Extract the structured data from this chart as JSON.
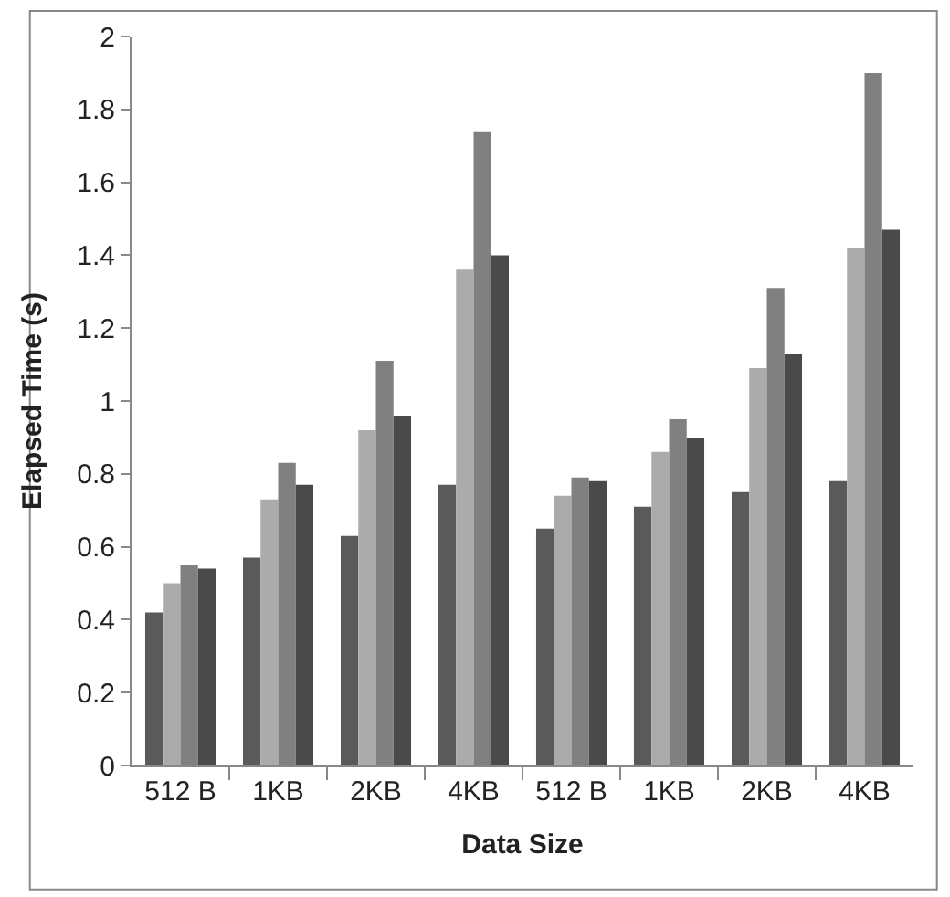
{
  "chart_data": {
    "type": "bar",
    "xlabel": "Data Size",
    "ylabel": "Elapsed Time (s)",
    "categories": [
      "512 B",
      "1KB",
      "2KB",
      "4KB",
      "512 B",
      "1KB",
      "2KB",
      "4KB"
    ],
    "series": [
      {
        "color": "#5a5a5a",
        "values": [
          0.42,
          0.57,
          0.63,
          0.77,
          0.65,
          0.71,
          0.75,
          0.78
        ]
      },
      {
        "color": "#ababab",
        "values": [
          0.5,
          0.73,
          0.92,
          1.36,
          0.74,
          0.86,
          1.09,
          1.42
        ]
      },
      {
        "color": "#808080",
        "values": [
          0.55,
          0.83,
          1.11,
          1.74,
          0.79,
          0.95,
          1.31,
          1.9
        ]
      },
      {
        "color": "#4a4a4a",
        "values": [
          0.54,
          0.77,
          0.96,
          1.4,
          0.78,
          0.9,
          1.13,
          1.47
        ]
      }
    ],
    "ylim": [
      0,
      2
    ],
    "yticks": [
      0,
      0.2,
      0.4,
      0.6,
      0.8,
      1,
      1.2,
      1.4,
      1.6,
      1.8,
      2
    ]
  }
}
